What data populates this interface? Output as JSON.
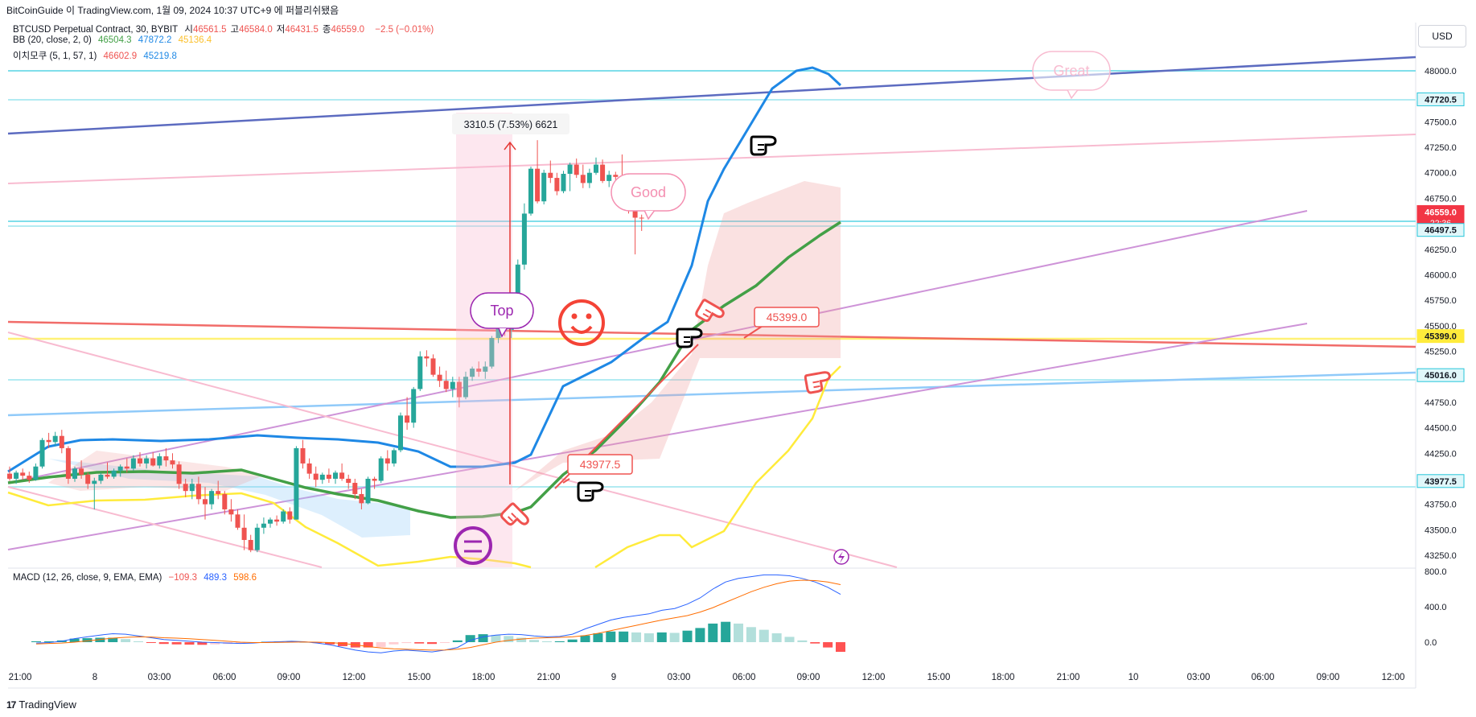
{
  "header": {
    "publish_line": "BitCoinGuide 이 TradingView.com, 1월 09, 2024 10:37 UTC+9 에 퍼블리쉬됐음",
    "currency_button": "USD"
  },
  "legend": {
    "symbol": "BTCUSD Perpetual Contract, 30, BYBIT",
    "ohlc": [
      {
        "label": "시",
        "value": "46561.5"
      },
      {
        "label": "고",
        "value": "46584.0"
      },
      {
        "label": "저",
        "value": "46431.5"
      },
      {
        "label": "종",
        "value": "46559.0"
      }
    ],
    "change": "−2.5 (−0.01%)",
    "bb": {
      "label": "BB (20, close, 2, 0)",
      "basis": "46504.3",
      "upper": "47872.2",
      "lower": "45136.4"
    },
    "ichimoku": {
      "label": "이치모쿠 (5, 1, 57, 1)",
      "v1": "46602.9",
      "v2": "45219.8"
    },
    "macd": {
      "label": "MACD (12, 26, close, 9, EMA, EMA)",
      "hist": "−109.3",
      "macd": "489.3",
      "signal": "598.6"
    }
  },
  "colors": {
    "up": "#26a69a",
    "down": "#ef5350",
    "bb_basis": "#43a047",
    "bb_upper": "#1e88e5",
    "bb_lower": "#ffeb3b",
    "macd_line": "#2962ff",
    "signal_line": "#ff6d00"
  },
  "annotations": {
    "measure_label": "3310.5 (7.53%) 6621",
    "bubble_top": "Top",
    "bubble_good": "Good",
    "bubble_great": "Great",
    "label_45399": "45399.0",
    "label_43977": "43977.5",
    "icons": [
      "smiley-face-icon",
      "neutral-face-icon",
      "pointing-hand-icon",
      "lightning-icon"
    ]
  },
  "footer": {
    "brand": "TradingView"
  },
  "chart_data": [
    {
      "type": "candlestick",
      "title": "BTCUSD Perpetual Contract, 30, BYBIT",
      "x_ticks": [
        "21:00",
        "8",
        "03:00",
        "06:00",
        "09:00",
        "12:00",
        "15:00",
        "18:00",
        "21:00",
        "9",
        "03:00",
        "06:00",
        "09:00",
        "12:00",
        "15:00",
        "18:00",
        "21:00",
        "10",
        "03:00",
        "06:00",
        "09:00",
        "12:00"
      ],
      "y_ticks": [
        "48000.0",
        "47750.0",
        "47500.0",
        "47250.0",
        "47000.0",
        "46750.0",
        "46500.0",
        "46250.0",
        "46000.0",
        "45750.0",
        "45500.0",
        "45250.0",
        "45000.0",
        "44750.0",
        "44500.0",
        "44250.0",
        "44000.0",
        "43750.0",
        "43500.0",
        "43250.0"
      ],
      "ylim": [
        43200,
        48250
      ],
      "price_labels": [
        {
          "value": "47720.5",
          "price": 47720.5,
          "style": "level"
        },
        {
          "value": "46559.0",
          "sub": "22:36",
          "price": 46600,
          "style": "current"
        },
        {
          "value": "46497.5",
          "price": 46440,
          "style": "level"
        },
        {
          "value": "45399.0",
          "price": 45399,
          "style": "yellow"
        },
        {
          "value": "45016.0",
          "price": 45016,
          "style": "level"
        },
        {
          "value": "43977.5",
          "price": 43977.5,
          "style": "level"
        }
      ],
      "candles": [
        [
          44050,
          44120,
          43980,
          44000
        ],
        [
          44000,
          44080,
          43950,
          44060
        ],
        [
          44060,
          44100,
          43990,
          44030
        ],
        [
          44030,
          44070,
          43960,
          43990
        ],
        [
          43990,
          44150,
          43980,
          44120
        ],
        [
          44120,
          44400,
          44100,
          44380
        ],
        [
          44380,
          44450,
          44300,
          44360
        ],
        [
          44360,
          44460,
          44320,
          44420
        ],
        [
          44420,
          44480,
          44250,
          44300
        ],
        [
          44300,
          44320,
          43950,
          44000
        ],
        [
          44000,
          44120,
          43970,
          44100
        ],
        [
          44100,
          44180,
          44000,
          44040
        ],
        [
          44040,
          44060,
          43900,
          43950
        ],
        [
          43950,
          44010,
          43700,
          43980
        ],
        [
          43980,
          44060,
          43950,
          44040
        ],
        [
          44040,
          44160,
          44000,
          44020
        ],
        [
          44020,
          44100,
          44000,
          44080
        ],
        [
          44080,
          44140,
          44020,
          44120
        ],
        [
          44120,
          44200,
          44060,
          44100
        ],
        [
          44100,
          44230,
          44080,
          44200
        ],
        [
          44200,
          44260,
          44120,
          44150
        ],
        [
          44150,
          44230,
          44100,
          44200
        ],
        [
          44200,
          44260,
          44120,
          44130
        ],
        [
          44130,
          44250,
          44100,
          44220
        ],
        [
          44220,
          44300,
          44120,
          44180
        ],
        [
          44180,
          44250,
          44100,
          44140
        ],
        [
          44140,
          44170,
          43900,
          43950
        ],
        [
          43950,
          44000,
          43820,
          43880
        ],
        [
          43880,
          44000,
          43800,
          43950
        ],
        [
          43950,
          44020,
          43750,
          43800
        ],
        [
          43800,
          43920,
          43600,
          43750
        ],
        [
          43750,
          43900,
          43700,
          43880
        ],
        [
          43880,
          43980,
          43800,
          43850
        ],
        [
          43850,
          43880,
          43650,
          43700
        ],
        [
          43700,
          43800,
          43580,
          43650
        ],
        [
          43650,
          43700,
          43500,
          43520
        ],
        [
          43520,
          43650,
          43300,
          43400
        ],
        [
          43400,
          43450,
          43280,
          43300
        ],
        [
          43300,
          43560,
          43280,
          43520
        ],
        [
          43520,
          43620,
          43460,
          43560
        ],
        [
          43560,
          43620,
          43520,
          43600
        ],
        [
          43600,
          43640,
          43540,
          43580
        ],
        [
          43580,
          43700,
          43560,
          43680
        ],
        [
          43680,
          43720,
          43560,
          43600
        ],
        [
          43600,
          44320,
          43600,
          44300
        ],
        [
          44300,
          44380,
          44100,
          44150
        ],
        [
          44150,
          44200,
          44000,
          44050
        ],
        [
          44050,
          44120,
          43920,
          43990
        ],
        [
          43990,
          44060,
          43950,
          44040
        ],
        [
          44040,
          44100,
          43960,
          44000
        ],
        [
          44000,
          44080,
          43950,
          44060
        ],
        [
          44060,
          44150,
          43980,
          44000
        ],
        [
          44000,
          44040,
          43900,
          43960
        ],
        [
          43960,
          44000,
          43800,
          43850
        ],
        [
          43850,
          43900,
          43700,
          43760
        ],
        [
          43760,
          44020,
          43750,
          44000
        ],
        [
          44000,
          44020,
          43900,
          43980
        ],
        [
          43980,
          44220,
          43960,
          44200
        ],
        [
          44200,
          44280,
          44080,
          44150
        ],
        [
          44150,
          44300,
          44120,
          44280
        ],
        [
          44280,
          44650,
          44260,
          44620
        ],
        [
          44620,
          44800,
          44480,
          44550
        ],
        [
          44550,
          44900,
          44500,
          44880
        ],
        [
          44880,
          45250,
          44860,
          45200
        ],
        [
          45200,
          45260,
          45100,
          45180
        ],
        [
          45180,
          45220,
          45000,
          45020
        ],
        [
          45020,
          45100,
          44900,
          44960
        ],
        [
          44960,
          45060,
          44850,
          44880
        ],
        [
          44880,
          45000,
          44800,
          44950
        ],
        [
          44950,
          45000,
          44700,
          44800
        ],
        [
          44800,
          45050,
          44780,
          45000
        ],
        [
          45000,
          45100,
          44960,
          45080
        ],
        [
          45080,
          45150,
          45000,
          45050
        ],
        [
          45050,
          45150,
          44980,
          45100
        ],
        [
          45100,
          45400,
          45080,
          45380
        ],
        [
          45380,
          45650,
          45330,
          45620
        ],
        [
          45620,
          45720,
          45400,
          45460
        ],
        [
          45460,
          45600,
          45380,
          45560
        ],
        [
          45560,
          46150,
          45540,
          46100
        ],
        [
          46100,
          46700,
          46050,
          46600
        ],
        [
          46600,
          47060,
          46580,
          47040
        ],
        [
          47040,
          47320,
          46700,
          46720
        ],
        [
          46720,
          47030,
          46690,
          47000
        ],
        [
          47000,
          47120,
          46900,
          46950
        ],
        [
          46950,
          47000,
          46780,
          46820
        ],
        [
          46820,
          47020,
          46800,
          46990
        ],
        [
          46990,
          47100,
          46820,
          47080
        ],
        [
          47080,
          47140,
          46950,
          46980
        ],
        [
          46980,
          47080,
          46850,
          46900
        ],
        [
          46900,
          47040,
          46850,
          47000
        ],
        [
          47000,
          47150,
          46980,
          47080
        ],
        [
          47080,
          47130,
          46900,
          46920
        ],
        [
          46920,
          47020,
          46860,
          46980
        ],
        [
          46980,
          47010,
          46930,
          46960
        ],
        [
          46960,
          47180,
          46820,
          46900
        ],
        [
          46900,
          46950,
          46600,
          46680
        ],
        [
          46680,
          46790,
          46200,
          46560
        ],
        [
          46560,
          46590,
          46430,
          46559
        ]
      ]
    },
    {
      "type": "bar",
      "title": "MACD (12, 26, close, 9, EMA, EMA)",
      "y_ticks": [
        "800.0",
        "400.0",
        "0.0"
      ],
      "ylim": [
        -160,
        820
      ],
      "series": [
        {
          "name": "MACD",
          "values": [
            -10,
            -5,
            10,
            40,
            60,
            80,
            95,
            90,
            70,
            50,
            30,
            20,
            10,
            0,
            -5,
            -10,
            -15,
            -10,
            0,
            5,
            10,
            5,
            -10,
            -30,
            -60,
            -90,
            -110,
            -120,
            -100,
            -90,
            -100,
            -110,
            -90,
            -60,
            20,
            60,
            80,
            90,
            85,
            70,
            60,
            65,
            90,
            150,
            200,
            250,
            280,
            300,
            320,
            360,
            380,
            430,
            500,
            600,
            680,
            720,
            740,
            760,
            760,
            750,
            720,
            680,
            620,
            540
          ]
        },
        {
          "name": "Signal",
          "values": [
            -20,
            -15,
            -10,
            0,
            15,
            30,
            45,
            55,
            60,
            58,
            50,
            45,
            38,
            30,
            20,
            10,
            0,
            -5,
            -5,
            -3,
            0,
            2,
            0,
            -5,
            -15,
            -30,
            -50,
            -65,
            -75,
            -80,
            -85,
            -90,
            -88,
            -80,
            -60,
            -30,
            0,
            20,
            35,
            45,
            50,
            55,
            60,
            75,
            100,
            130,
            160,
            190,
            220,
            250,
            275,
            300,
            340,
            390,
            450,
            510,
            570,
            620,
            660,
            690,
            700,
            695,
            680,
            650
          ]
        },
        {
          "name": "Histogram",
          "values": [
            10,
            10,
            20,
            40,
            45,
            50,
            50,
            35,
            10,
            -8,
            -20,
            -25,
            -28,
            -30,
            -25,
            -20,
            -15,
            -5,
            5,
            8,
            10,
            3,
            -10,
            -25,
            -45,
            -60,
            -60,
            -55,
            -25,
            -10,
            -15,
            -20,
            -2,
            20,
            80,
            90,
            80,
            70,
            50,
            25,
            10,
            10,
            30,
            75,
            100,
            120,
            120,
            110,
            100,
            110,
            105,
            130,
            160,
            210,
            230,
            210,
            170,
            140,
            100,
            60,
            20,
            -15,
            -60,
            -109
          ]
        }
      ]
    }
  ]
}
